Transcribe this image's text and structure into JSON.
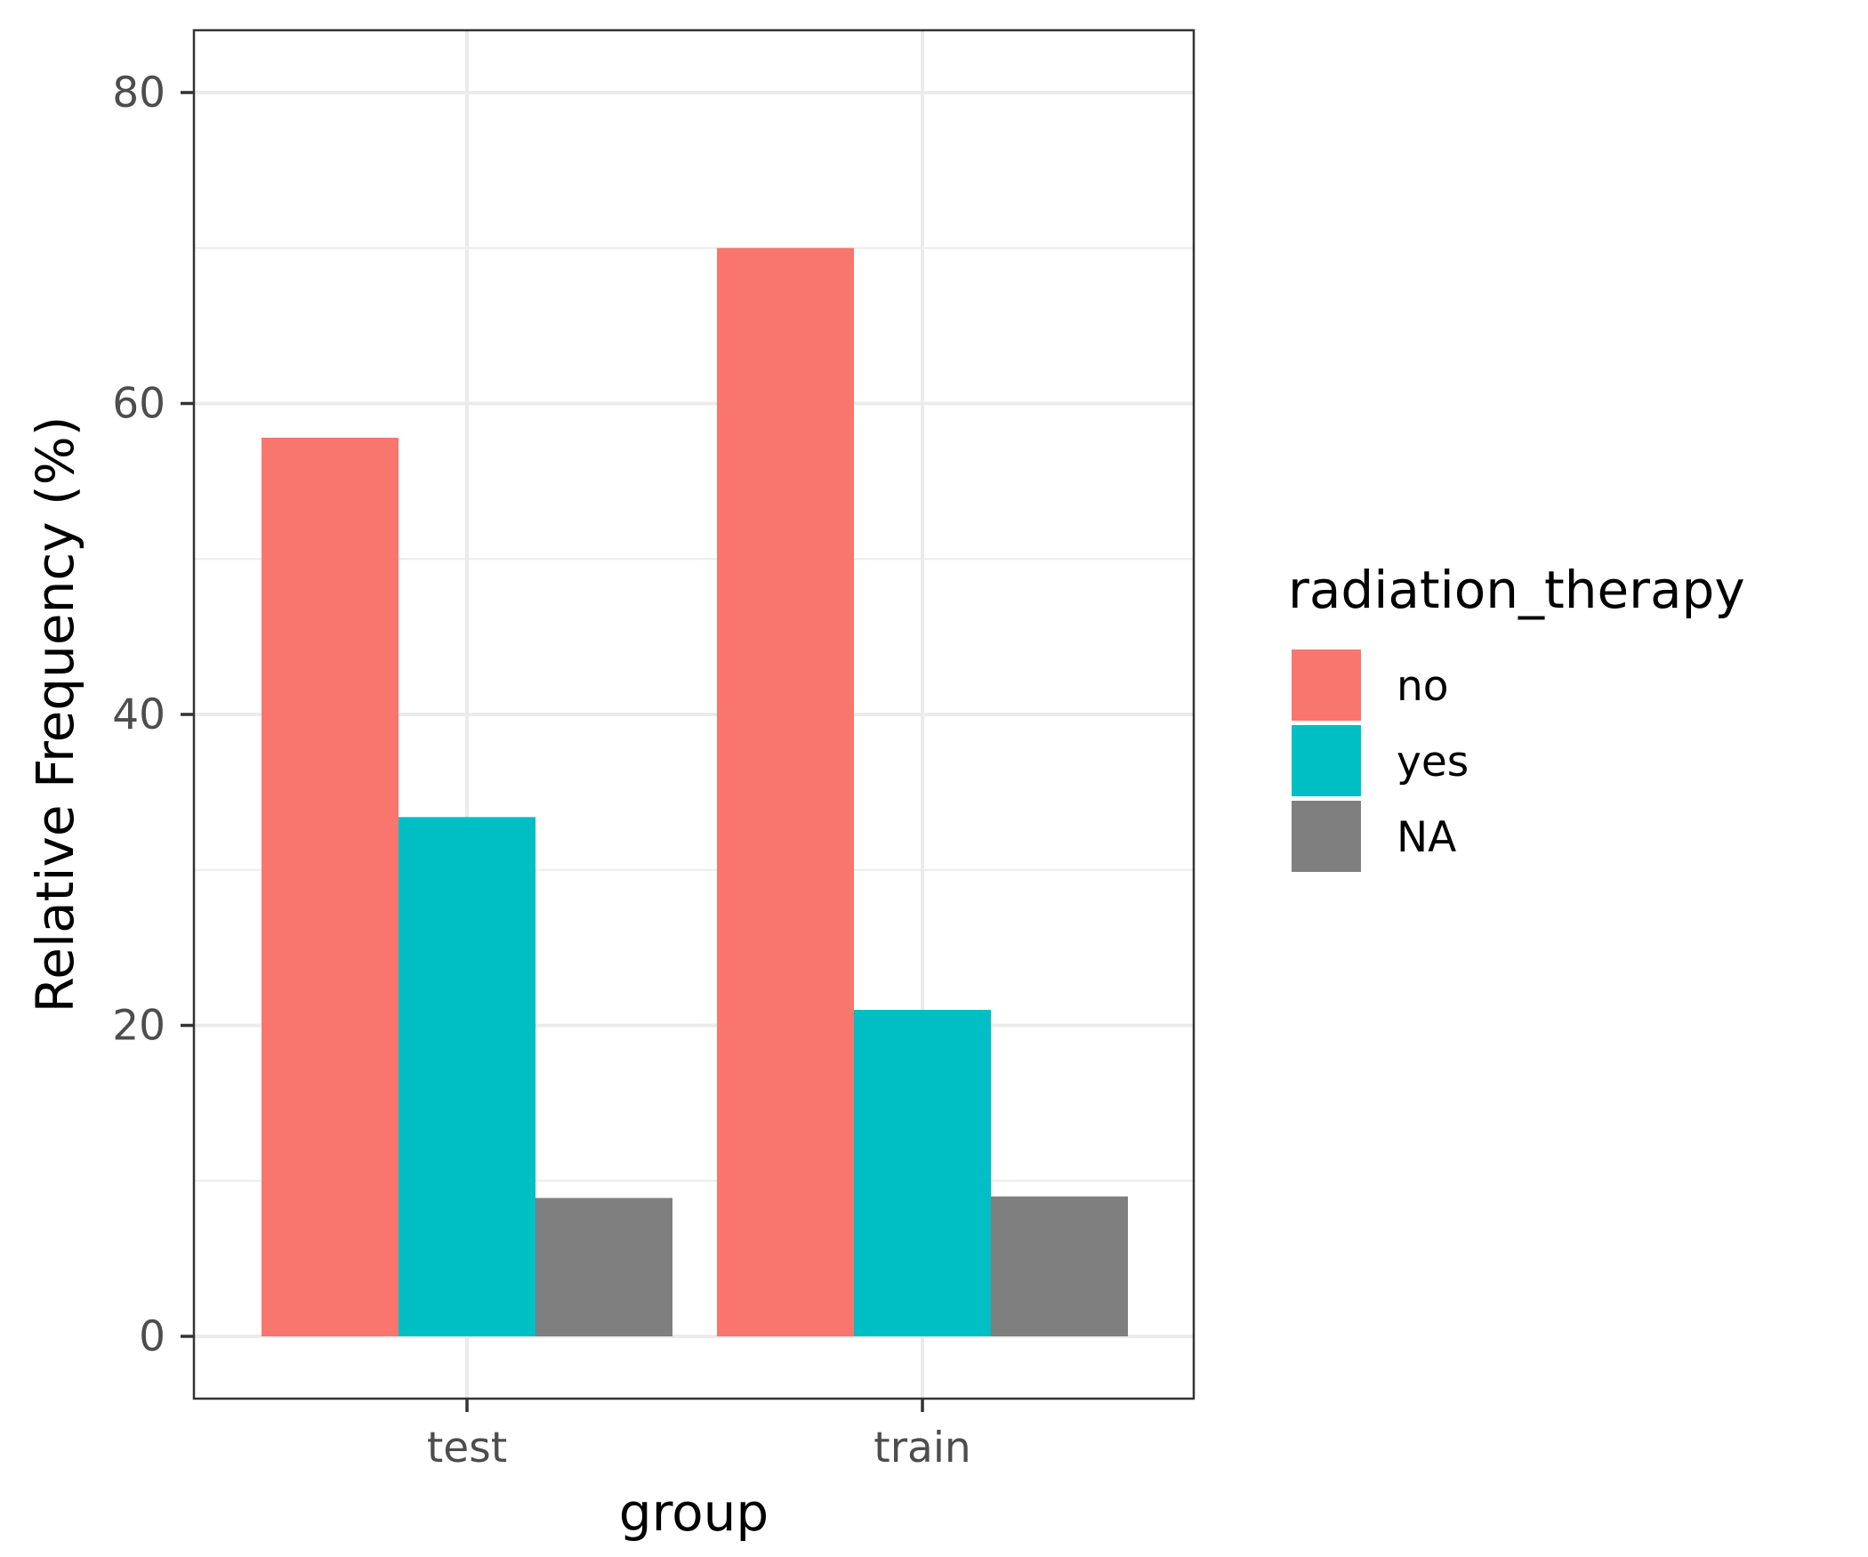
{
  "chart_data": {
    "type": "bar",
    "title": "",
    "xlabel": "group",
    "ylabel": "Relative Frequency (%)",
    "categories": [
      "test",
      "train"
    ],
    "series": [
      {
        "name": "no",
        "values": [
          57.8,
          70.0
        ],
        "color": "#F8766D"
      },
      {
        "name": "yes",
        "values": [
          33.4,
          21.0
        ],
        "color": "#00BFC4"
      },
      {
        "name": "NA",
        "values": [
          8.9,
          9.0
        ],
        "color": "#7F7F7F"
      }
    ],
    "ylim": [
      -3.9,
      84.0
    ],
    "yticks": [
      0,
      20,
      40,
      60,
      80
    ],
    "grid": true,
    "legend": {
      "title": "radiation_therapy",
      "position": "right"
    }
  }
}
